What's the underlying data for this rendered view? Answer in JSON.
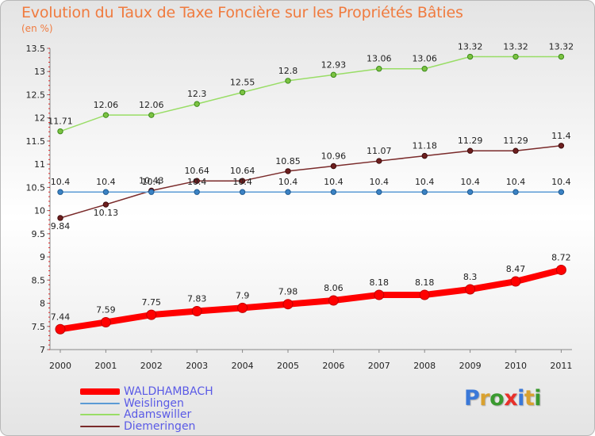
{
  "title": "Evolution du Taux de Taxe Foncière sur les Propriétés Bâties",
  "unit": "(en %)",
  "logo": {
    "letters": [
      "P",
      "r",
      "o",
      "x",
      "i",
      "t",
      "i"
    ],
    "colors": [
      "#3a78d8",
      "#d9a12f",
      "#3a9a2f",
      "#e8302a",
      "#3a78d8",
      "#d9a12f",
      "#3a9a2f"
    ]
  },
  "chart_data": {
    "type": "line",
    "title": "Evolution du Taux de Taxe Foncière sur les Propriétés Bâties",
    "ylabel": "(en %)",
    "xlabel": "",
    "x": [
      "2000",
      "2001",
      "2002",
      "2003",
      "2004",
      "2005",
      "2006",
      "2007",
      "2008",
      "2009",
      "2010",
      "2011"
    ],
    "ylim": [
      7,
      13.5
    ],
    "yticks": [
      "7",
      "7.5",
      "8",
      "8.5",
      "9",
      "9.5",
      "10",
      "10.5",
      "11",
      "11.5",
      "12",
      "12.5",
      "13",
      "13.5"
    ],
    "grid": false,
    "legend_position": "bottom-left",
    "series": [
      {
        "name": "WALDHAMBACH",
        "color": "#ff0000",
        "values": [
          7.44,
          7.59,
          7.75,
          7.83,
          7.9,
          7.98,
          8.06,
          8.18,
          8.18,
          8.3,
          8.47,
          8.72
        ],
        "labels": [
          "7.44",
          "7.59",
          "7.75",
          "7.83",
          "7.9",
          "7.98",
          "8.06",
          "8.18",
          "8.18",
          "8.3",
          "8.47",
          "8.72"
        ]
      },
      {
        "name": "Weislingen",
        "color": "#5b9bd5",
        "values": [
          10.4,
          10.4,
          10.4,
          10.4,
          10.4,
          10.4,
          10.4,
          10.4,
          10.4,
          10.4,
          10.4,
          10.4
        ],
        "labels": [
          "10.4",
          "10.4",
          "10.4",
          "10.4",
          "10.4",
          "10.4",
          "10.4",
          "10.4",
          "10.4",
          "10.4",
          "10.4",
          "10.4"
        ]
      },
      {
        "name": "Adamswiller",
        "color": "#99dd66",
        "values": [
          11.71,
          12.06,
          12.06,
          12.3,
          12.55,
          12.8,
          12.93,
          13.06,
          13.06,
          13.32,
          13.32,
          13.32
        ],
        "labels": [
          "11.71",
          "12.06",
          "12.06",
          "12.3",
          "12.55",
          "12.8",
          "12.93",
          "13.06",
          "13.06",
          "13.32",
          "13.32",
          "13.32"
        ]
      },
      {
        "name": "Diemeringen",
        "color": "#7a2a2a",
        "values": [
          9.84,
          10.13,
          10.43,
          10.64,
          10.64,
          10.85,
          10.96,
          11.07,
          11.18,
          11.29,
          11.29,
          11.4
        ],
        "labels": [
          "9.84",
          "10.13",
          "10.43",
          "10.64",
          "10.64",
          "10.85",
          "10.96",
          "11.07",
          "11.18",
          "11.29",
          "11.29",
          "11.4"
        ]
      }
    ]
  }
}
